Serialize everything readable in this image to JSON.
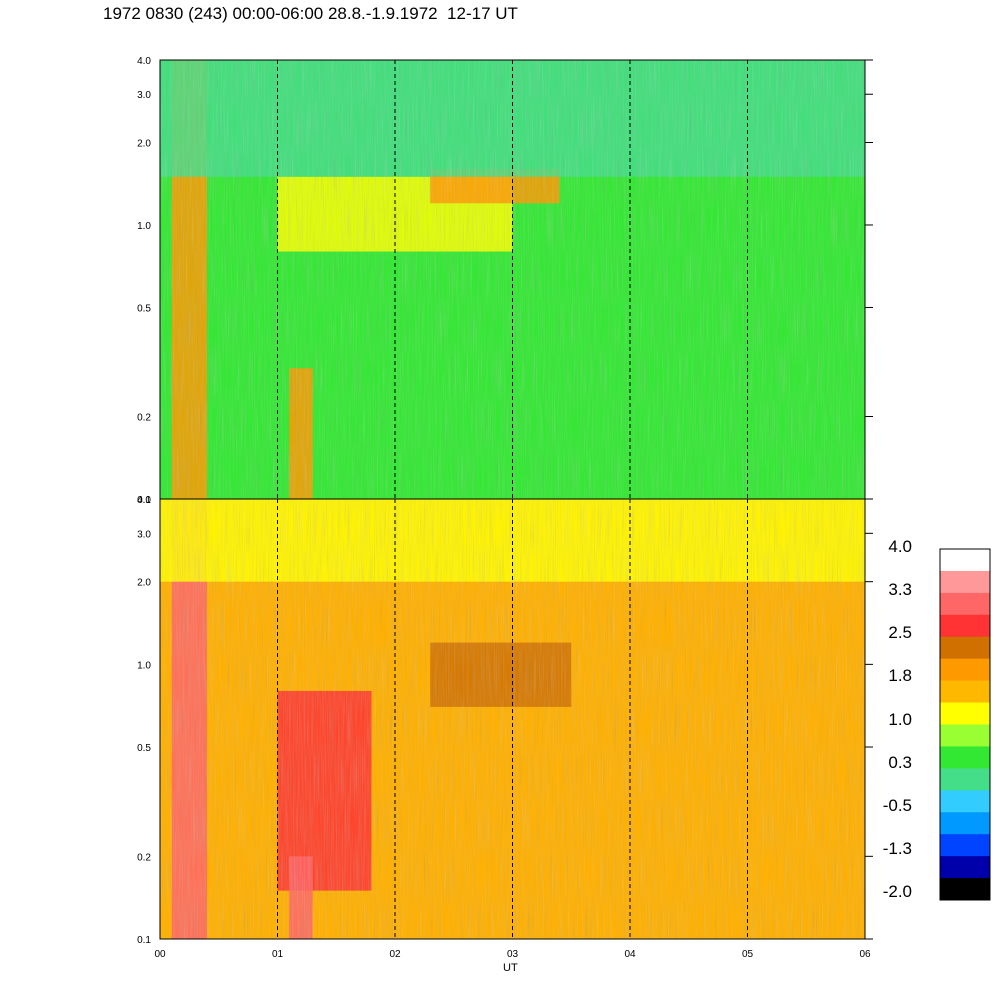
{
  "title": "1972 0830 (243) 00:00-06:00 28.8.-1.9.1972  12-17 UT",
  "chart_data": [
    {
      "type": "heatmap",
      "panel": "upper",
      "x_ticks": [
        "00",
        "01",
        "02",
        "03",
        "04",
        "05",
        "06"
      ],
      "x_range": [
        0,
        6
      ],
      "y_scale": "log",
      "y_range": [
        0.1,
        4.0
      ],
      "y_ticks": [
        "0.1",
        "0.2",
        "0.5",
        "1.0",
        "2.0",
        "3.0",
        "4.0"
      ],
      "dashed_lines_at": [
        1,
        2,
        3,
        4,
        5
      ],
      "base_color": "#33e833",
      "features": [
        {
          "x": [
            0.1,
            0.4
          ],
          "y": [
            0.1,
            4.0
          ],
          "level": 1.8
        },
        {
          "x": [
            1.0,
            3.0
          ],
          "y": [
            0.8,
            1.5
          ],
          "level": 1.2
        },
        {
          "x": [
            2.3,
            3.4
          ],
          "y": [
            1.2,
            1.6
          ],
          "level": 1.6
        },
        {
          "x": [
            1.1,
            1.3
          ],
          "y": [
            0.1,
            0.3
          ],
          "level": 1.8
        },
        {
          "x": [
            0,
            6
          ],
          "y": [
            1.5,
            4.0
          ],
          "level": 0.0
        }
      ]
    },
    {
      "type": "heatmap",
      "panel": "lower",
      "x_ticks": [
        "00",
        "01",
        "02",
        "03",
        "04",
        "05",
        "06"
      ],
      "x_range": [
        0,
        6
      ],
      "xlabel": "UT",
      "y_scale": "log",
      "y_range": [
        0.1,
        4.0
      ],
      "y_ticks": [
        "0.1",
        "0.2",
        "0.5",
        "1.0",
        "2.0",
        "3.0",
        "4.0"
      ],
      "dashed_lines_at": [
        1,
        2,
        3,
        4,
        5
      ],
      "base_color": "#ffb000",
      "features": [
        {
          "x": [
            0.1,
            0.4
          ],
          "y": [
            0.1,
            4.0
          ],
          "level": 3.0
        },
        {
          "x": [
            1.0,
            1.8
          ],
          "y": [
            0.15,
            0.8
          ],
          "level": 2.6
        },
        {
          "x": [
            1.1,
            1.3
          ],
          "y": [
            0.1,
            0.2
          ],
          "level": 2.8
        },
        {
          "x": [
            2.3,
            3.5
          ],
          "y": [
            0.7,
            1.2
          ],
          "level": 2.2
        },
        {
          "x": [
            0,
            6
          ],
          "y": [
            2.0,
            4.0
          ],
          "level": 1.2
        }
      ]
    }
  ],
  "colorbar": {
    "labels": [
      "4.0",
      "3.3",
      "2.5",
      "1.8",
      "1.0",
      "0.3",
      "-0.5",
      "-1.3",
      "-2.0"
    ],
    "colors": [
      "#ffffff",
      "#ff9999",
      "#ff6666",
      "#ff3333",
      "#d07000",
      "#ff9900",
      "#ffb800",
      "#ffff00",
      "#99ff33",
      "#33e833",
      "#44dd88",
      "#33ccff",
      "#0099ff",
      "#0044ff",
      "#0000aa",
      "#000000"
    ]
  }
}
